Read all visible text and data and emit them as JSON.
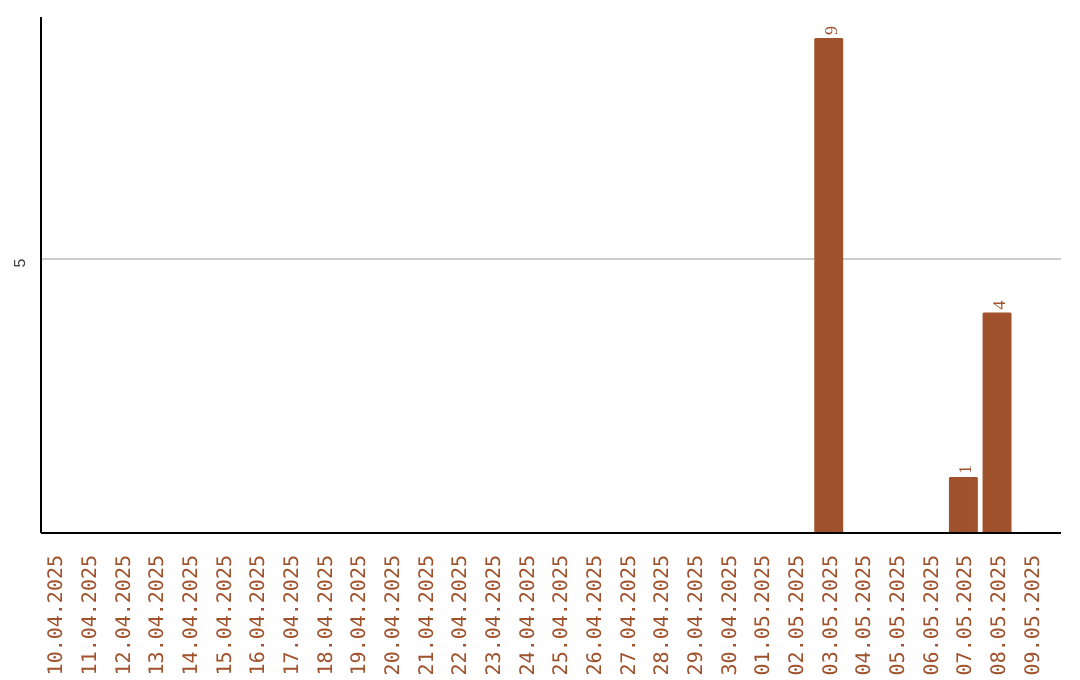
{
  "chart_data": {
    "type": "bar",
    "categories": [
      "10.04.2025",
      "11.04.2025",
      "12.04.2025",
      "13.04.2025",
      "14.04.2025",
      "15.04.2025",
      "16.04.2025",
      "17.04.2025",
      "18.04.2025",
      "19.04.2025",
      "20.04.2025",
      "21.04.2025",
      "22.04.2025",
      "23.04.2025",
      "24.04.2025",
      "25.04.2025",
      "26.04.2025",
      "27.04.2025",
      "28.04.2025",
      "29.04.2025",
      "30.04.2025",
      "01.05.2025",
      "02.05.2025",
      "03.05.2025",
      "04.05.2025",
      "05.05.2025",
      "06.05.2025",
      "07.05.2025",
      "08.05.2025",
      "09.05.2025"
    ],
    "values": [
      null,
      null,
      null,
      null,
      null,
      null,
      null,
      null,
      null,
      null,
      null,
      null,
      null,
      null,
      null,
      null,
      null,
      null,
      null,
      null,
      null,
      null,
      null,
      9,
      null,
      null,
      null,
      1,
      4,
      null
    ],
    "color": "#a0522d",
    "ylim": [
      0,
      9.4
    ],
    "yticks": [
      5
    ],
    "grid": "y",
    "data_labels": true
  }
}
